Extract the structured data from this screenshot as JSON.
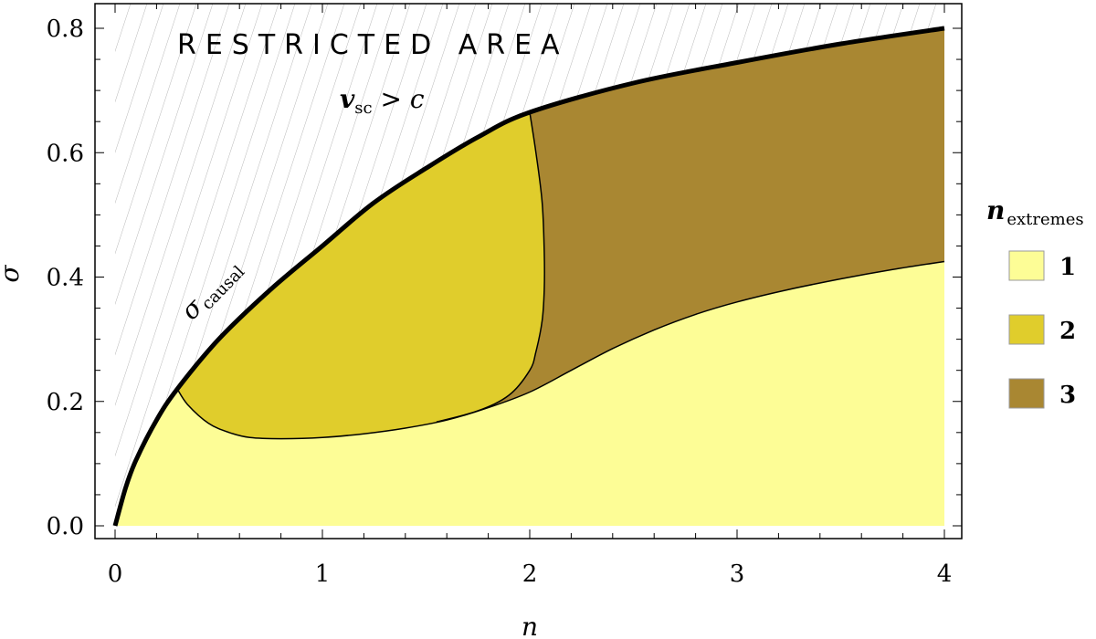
{
  "chart_data": {
    "type": "area",
    "xlabel": "n",
    "ylabel": "σ",
    "xlim": [
      0,
      4
    ],
    "ylim": [
      0,
      0.8
    ],
    "x_ticks": [
      "0",
      "1",
      "2",
      "3",
      "4"
    ],
    "y_ticks": [
      "0.0",
      "0.2",
      "0.4",
      "0.6",
      "0.8"
    ],
    "grid": false,
    "legend_position": "right",
    "legend_title": {
      "main": "n",
      "sub": "extremes"
    },
    "annotations": {
      "restricted": "RESTRICTED AREA",
      "vsc_main": "v",
      "vsc_sub": "sc",
      "vsc_rest": " > c",
      "causal_main": "σ",
      "causal_sub": "causal"
    },
    "series": [
      {
        "name": "1",
        "color": "#fdfd96"
      },
      {
        "name": "2",
        "color": "#e0cd2c"
      },
      {
        "name": "3",
        "color": "#a98732"
      }
    ],
    "curves": {
      "sigma_causal": {
        "x": [
          0,
          0.05,
          0.1,
          0.2,
          0.3,
          0.5,
          0.75,
          1.0,
          1.25,
          1.5,
          1.75,
          2.0,
          2.5,
          3.0,
          3.5,
          4.0
        ],
        "y": [
          0,
          0.06,
          0.105,
          0.17,
          0.22,
          0.3,
          0.38,
          0.45,
          0.52,
          0.575,
          0.625,
          0.665,
          0.712,
          0.745,
          0.775,
          0.8
        ]
      },
      "lower_boundary": {
        "x": [
          0.3,
          0.35,
          0.45,
          0.55,
          0.65,
          0.8,
          1.0,
          1.2,
          1.4,
          1.6,
          1.8,
          2.0,
          2.2,
          2.4,
          2.6,
          2.8,
          3.0,
          3.25,
          3.5,
          3.75,
          4.0
        ],
        "y": [
          0.22,
          0.195,
          0.165,
          0.15,
          0.142,
          0.14,
          0.142,
          0.148,
          0.157,
          0.17,
          0.19,
          0.215,
          0.25,
          0.285,
          0.315,
          0.34,
          0.36,
          0.38,
          0.397,
          0.412,
          0.425
        ]
      },
      "boundary_2_3": {
        "x": [
          2.0,
          2.03,
          2.06,
          2.07,
          2.07,
          2.06,
          2.03,
          2.0,
          1.9,
          1.75,
          1.55
        ],
        "y": [
          0.665,
          0.6,
          0.52,
          0.44,
          0.38,
          0.33,
          0.28,
          0.25,
          0.21,
          0.185,
          0.167
        ]
      }
    }
  }
}
